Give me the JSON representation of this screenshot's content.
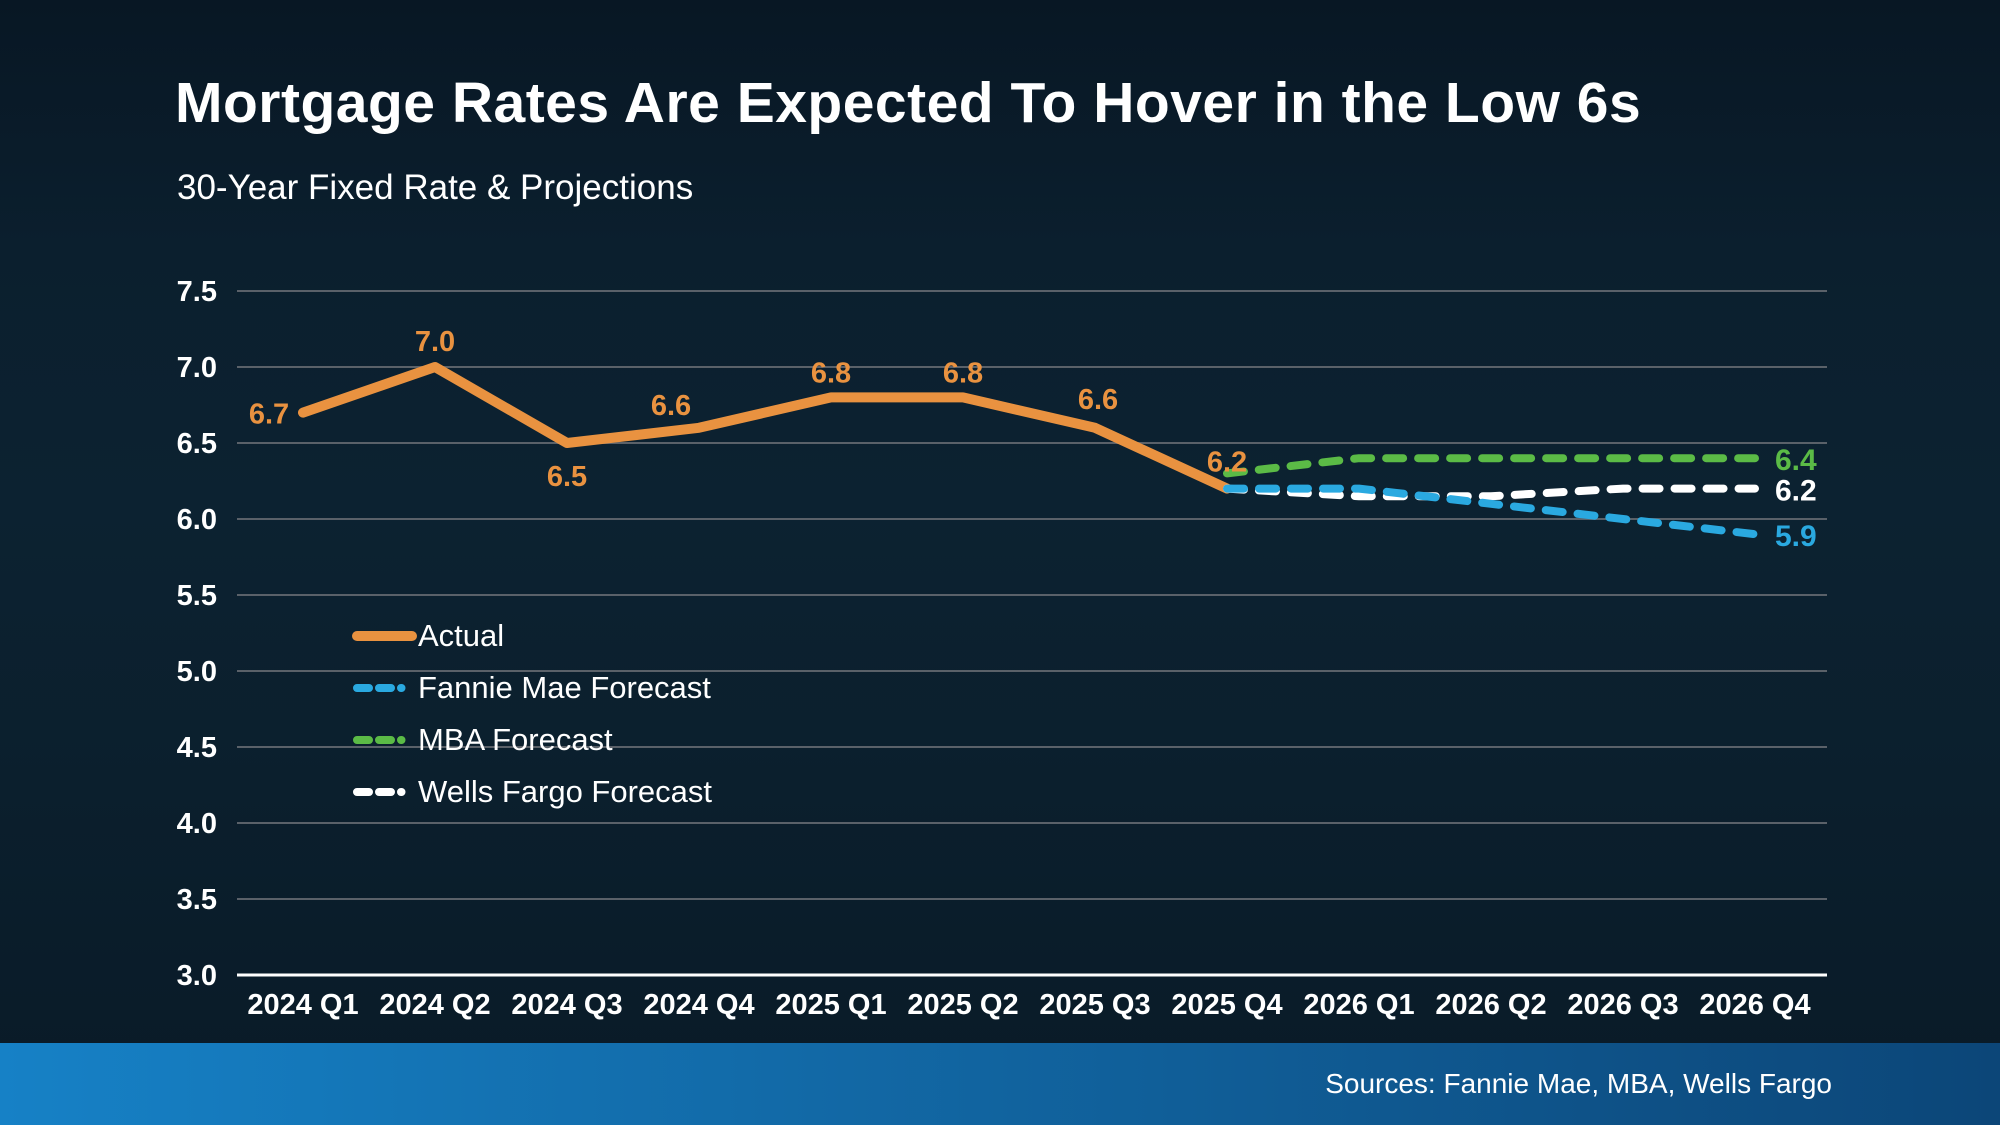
{
  "page": {
    "title": "Mortgage Rates Are Expected To Hover in the Low 6s",
    "subtitle": "30-Year Fixed Rate & Projections",
    "source_note": "Sources: Fannie Mae, MBA, Wells Fargo"
  },
  "colors": {
    "background": "#0b1f2d",
    "text": "#ffffff",
    "gridline": "#5a6169",
    "axis_line": "#ffffff",
    "actual": "#e99240",
    "fannie_mae": "#2aa9e0",
    "mba": "#5bbb46",
    "wells_fargo": "#ffffff",
    "footer_bar_left": "#1681c6",
    "footer_bar_right": "#0c4678"
  },
  "chart_data": {
    "type": "line",
    "title": "Mortgage Rates Are Expected To Hover in the Low 6s",
    "subtitle": "30-Year Fixed Rate & Projections",
    "categories": [
      "2024 Q1",
      "2024 Q2",
      "2024 Q3",
      "2024 Q4",
      "2025 Q1",
      "2025 Q2",
      "2025 Q3",
      "2025 Q4",
      "2026 Q1",
      "2026 Q2",
      "2026 Q3",
      "2026 Q4"
    ],
    "xlabel": "",
    "ylabel": "",
    "ylim": [
      3.0,
      7.5
    ],
    "y_ticks": [
      7.5,
      7.0,
      6.5,
      6.0,
      5.5,
      5.0,
      4.5,
      4.0,
      3.5,
      3.0
    ],
    "grid": "horizontal",
    "legend_position": "inside-left",
    "series": [
      {
        "id": "actual",
        "name": "Actual",
        "color": "#e99240",
        "style": "solid",
        "x": [
          "2024 Q1",
          "2024 Q2",
          "2024 Q3",
          "2024 Q4",
          "2025 Q1",
          "2025 Q2",
          "2025 Q3",
          "2025 Q4"
        ],
        "values": [
          6.7,
          7.0,
          6.5,
          6.6,
          6.8,
          6.8,
          6.6,
          6.2
        ],
        "point_labels": [
          "6.7",
          "7.0",
          "6.5",
          "6.6",
          "6.8",
          "6.8",
          "6.6",
          "6.2"
        ]
      },
      {
        "id": "fannie-mae-forecast",
        "name": "Fannie Mae Forecast",
        "color": "#2aa9e0",
        "style": "dashed",
        "x": [
          "2025 Q4",
          "2026 Q1",
          "2026 Q2",
          "2026 Q3",
          "2026 Q4"
        ],
        "values": [
          6.2,
          6.2,
          6.1,
          6.0,
          5.9
        ],
        "end_label": "5.9"
      },
      {
        "id": "mba-forecast",
        "name": "MBA Forecast",
        "color": "#5bbb46",
        "style": "dashed",
        "x": [
          "2025 Q4",
          "2026 Q1",
          "2026 Q2",
          "2026 Q3",
          "2026 Q4"
        ],
        "values": [
          6.3,
          6.4,
          6.4,
          6.4,
          6.4
        ],
        "end_label": "6.4"
      },
      {
        "id": "wells-fargo-forecast",
        "name": "Wells Fargo Forecast",
        "color": "#ffffff",
        "style": "dashed",
        "x": [
          "2025 Q4",
          "2026 Q1",
          "2026 Q2",
          "2026 Q3",
          "2026 Q4"
        ],
        "values": [
          6.2,
          6.15,
          6.15,
          6.2,
          6.2
        ],
        "end_label": "6.2"
      }
    ],
    "legend": [
      "Actual",
      "Fannie Mae Forecast",
      "MBA Forecast",
      "Wells Fargo Forecast"
    ]
  }
}
